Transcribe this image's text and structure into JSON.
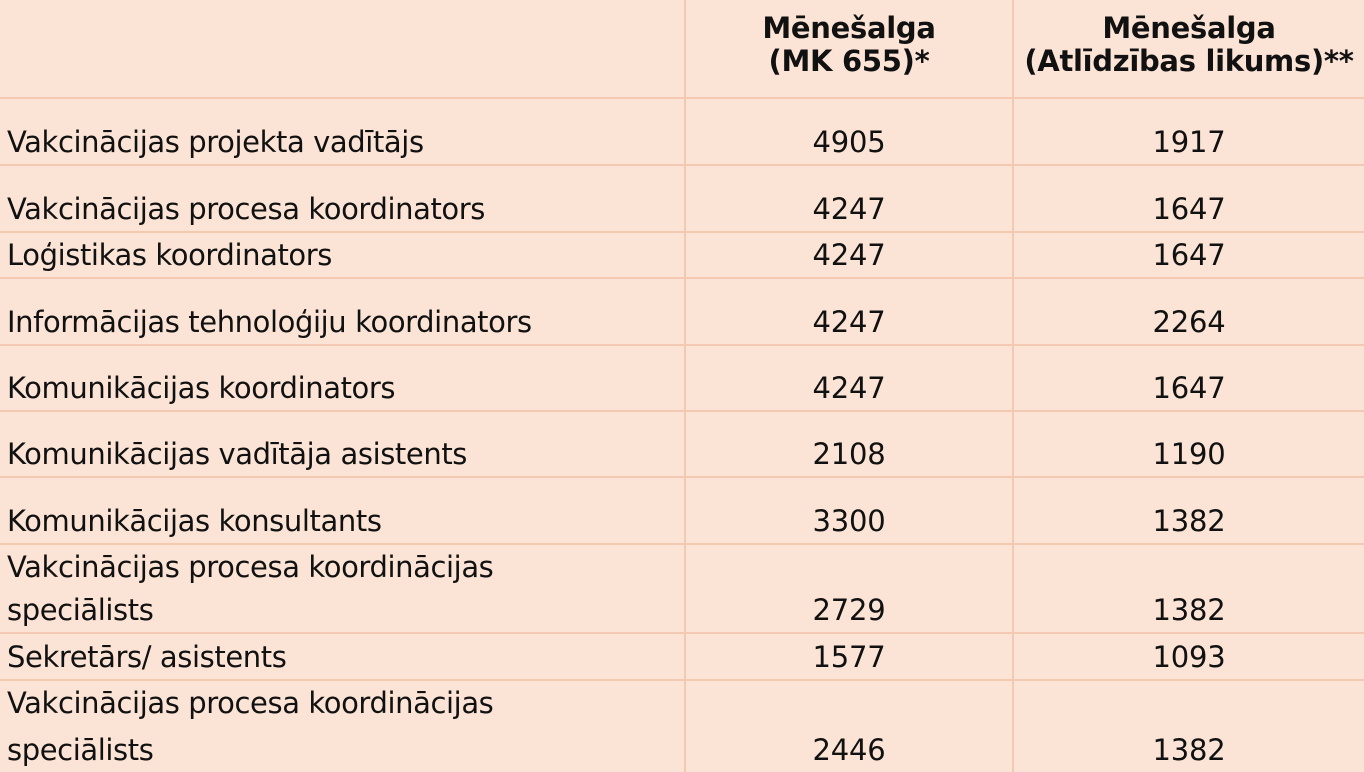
{
  "header": {
    "col1_line1": "Mēnešalga",
    "col1_line2": "(MK 655)*",
    "col2_line1": "Mēnešalga",
    "col2_line2": "(Atlīdzības likums)**"
  },
  "rows": [
    {
      "position": "Vakcinācijas projekta vadītājs",
      "mk655": "4905",
      "atlidzibas": "1917"
    },
    {
      "position": "Vakcinācijas procesa koordinators",
      "mk655": "4247",
      "atlidzibas": "1647"
    },
    {
      "position": "Loģistikas koordinators",
      "mk655": "4247",
      "atlidzibas": "1647"
    },
    {
      "position": "Informācijas tehnoloģiju koordinators",
      "mk655": "4247",
      "atlidzibas": "2264"
    },
    {
      "position": "Komunikācijas koordinators",
      "mk655": "4247",
      "atlidzibas": "1647"
    },
    {
      "position": "Komunikācijas vadītāja asistents",
      "mk655": "2108",
      "atlidzibas": "1190"
    },
    {
      "position": "Komunikācijas konsultants",
      "mk655": "3300",
      "atlidzibas": "1382"
    },
    {
      "position_line1": "Vakcinācijas procesa koordinācijas",
      "position_line2": "speciālists",
      "mk655": "2729",
      "atlidzibas": "1382"
    },
    {
      "position": "Sekretārs/ asistents",
      "mk655": "1577",
      "atlidzibas": "1093"
    },
    {
      "position_line1": "Vakcinācijas procesa koordinācijas",
      "position_line2": "speciālists",
      "mk655": "2446",
      "atlidzibas": "1382"
    }
  ]
}
